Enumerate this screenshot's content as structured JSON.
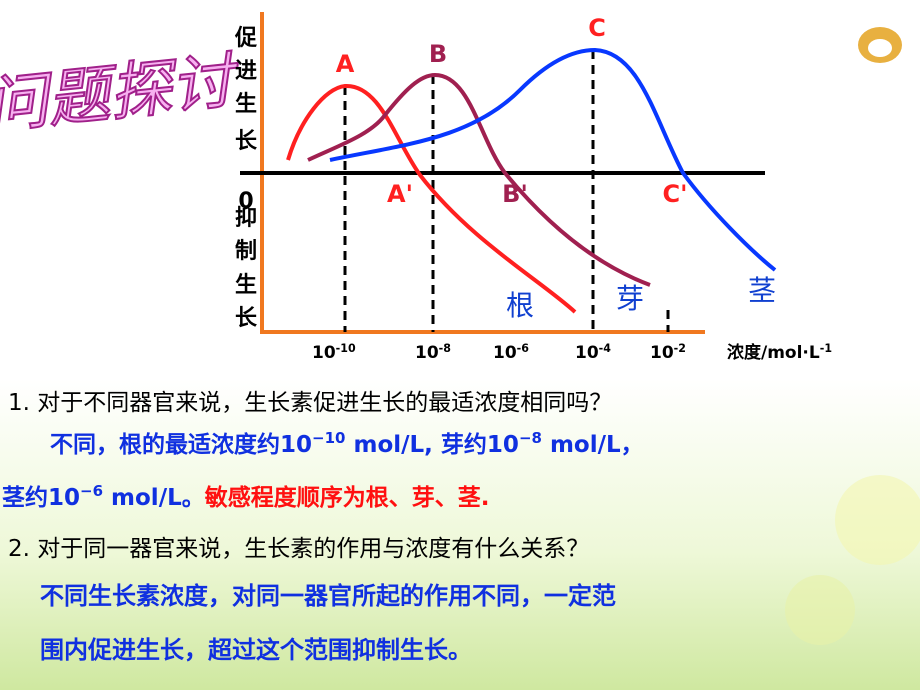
{
  "title": "问题探讨",
  "diagram": {
    "y_labels": {
      "promote": [
        "促",
        "进",
        "生",
        "长"
      ],
      "zero": "0",
      "inhibit": [
        "抑",
        "制",
        "生",
        "长"
      ]
    },
    "points": {
      "A": "A",
      "B": "B",
      "C": "C",
      "A_prime": "A'",
      "B_prime": "B'",
      "C_prime": "C'"
    },
    "organs": {
      "root": "根",
      "bud": "芽",
      "stem": "茎"
    },
    "x_ticks": [
      {
        "base": "10",
        "exp": "-10"
      },
      {
        "base": "10",
        "exp": "-8"
      },
      {
        "base": "10",
        "exp": "-6"
      },
      {
        "base": "10",
        "exp": "-4"
      },
      {
        "base": "10",
        "exp": "-2"
      }
    ],
    "x_unit": {
      "base": "浓度/mol·L",
      "exp": "-1"
    }
  },
  "question1": "1. 对于不同器官来说，生长素促进生长的最适浓度相同吗？",
  "answer1": {
    "line1": [
      {
        "text": "不同，根的最适浓度约10"
      },
      {
        "sup": "−10"
      },
      {
        "text": " mol/L, 芽约10"
      },
      {
        "sup": "−8"
      },
      {
        "text": " mol/L，"
      }
    ],
    "line2": [
      {
        "text": "茎约10"
      },
      {
        "sup": "−6"
      },
      {
        "text": " mol/L。"
      }
    ],
    "line2_red": "敏感程度顺序为根、芽、茎."
  },
  "question2": "2. 对于同一器官来说，生长素的作用与浓度有什么关系？",
  "answer2": [
    "不同生长素浓度，对同一器官所起的作用不同，一定范",
    "围内促进生长，超过这个范围抑制生长。"
  ]
}
